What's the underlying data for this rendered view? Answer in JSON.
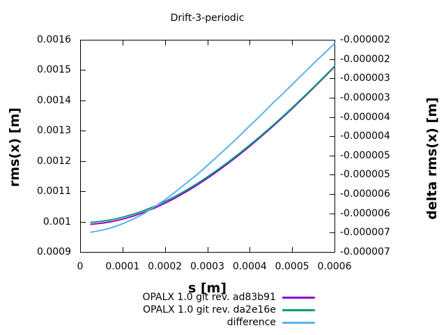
{
  "title": "Drift-3-periodic",
  "axes": {
    "x": {
      "label": "s [m]",
      "tick_labels": [
        "0",
        "0.0001",
        "0.0002",
        "0.0003",
        "0.0004",
        "0.0005",
        "0.0006"
      ]
    },
    "y_left": {
      "label": "rms(x) [m]",
      "tick_labels": [
        "0.0016",
        "0.0015",
        "0.0014",
        "0.0013",
        "0.0012",
        "0.0011",
        "0.001",
        "0.0009"
      ]
    },
    "y_right": {
      "label": "delta rms(x) [m]",
      "tick_labels": [
        "-0.000002",
        "-0.000002",
        "-0.000003",
        "-0.000003",
        "-0.000004",
        "-0.000004",
        "-0.000005",
        "-0.000005",
        "-0.000006",
        "-0.000006",
        "-0.000007",
        "-0.000007"
      ]
    }
  },
  "legend": {
    "items": [
      {
        "label": "OPALX 1.0 git rev. ad83b91",
        "color": "#9400d3"
      },
      {
        "label": "OPALX 1.0 git rev. da2e16e",
        "color": "#009e73"
      },
      {
        "label": "difference",
        "color": "#56b4e9"
      }
    ]
  },
  "colors": {
    "series1_purple": "#9400d3",
    "series2_green": "#009e73",
    "series3_blue": "#56b4e9",
    "axis": "#000000",
    "background": "#ffffff"
  },
  "chart_data": {
    "type": "line",
    "title": "Drift-3-periodic",
    "xlabel": "s [m]",
    "ylabel_left": "rms(x) [m]",
    "ylabel_right": "delta rms(x) [m]",
    "xlim": [
      0,
      0.0006
    ],
    "ylim_left": [
      0.0009,
      0.0016
    ],
    "ylim_right": [
      -7e-06,
      -1.5e-06
    ],
    "grid": false,
    "legend_position": "below-right",
    "x": [
      2.5e-05,
      5e-05,
      7.5e-05,
      0.0001,
      0.000125,
      0.00015,
      0.000175,
      0.0002,
      0.000225,
      0.00025,
      0.000275,
      0.0003,
      0.000325,
      0.00035,
      0.000375,
      0.0004,
      0.000425,
      0.00045,
      0.000475,
      0.0005,
      0.000525,
      0.00055,
      0.000575,
      0.0006
    ],
    "series": [
      {
        "name": "OPALX 1.0 git rev. ad83b91",
        "id": "opalx-ad83b91",
        "axis": "left",
        "color": "#9400d3",
        "values": [
          0.0009911,
          0.0009946,
          0.0010002,
          0.0010081,
          0.0010182,
          0.0010303,
          0.0010445,
          0.0010606,
          0.0010786,
          0.0010983,
          0.0011197,
          0.0011427,
          0.0011672,
          0.0011931,
          0.0012203,
          0.0012487,
          0.0012782,
          0.0013088,
          0.0013404,
          0.0013729,
          0.0014063,
          0.0014405,
          0.0014754,
          0.001511
        ]
      },
      {
        "name": "OPALX 1.0 git rev. da2e16e",
        "id": "opalx-da2e16e",
        "axis": "left",
        "color": "#009e73",
        "values": [
          0.0009976,
          0.001001,
          0.0010066,
          0.0010144,
          0.0010243,
          0.0010363,
          0.0010503,
          0.0010663,
          0.001084,
          0.0011035,
          0.0011247,
          0.0011475,
          0.0011717,
          0.0011974,
          0.0012243,
          0.0012524,
          0.0012817,
          0.001312,
          0.0013434,
          0.0013756,
          0.0014087,
          0.0014426,
          0.0014773,
          0.0015126
        ]
      },
      {
        "name": "difference",
        "id": "difference",
        "axis": "right",
        "color": "#56b4e9",
        "values": [
          -6.49e-06,
          -6.44e-06,
          -6.37e-06,
          -6.27e-06,
          -6.15e-06,
          -6.01e-06,
          -5.83e-06,
          -5.65e-06,
          -5.44e-06,
          -5.22e-06,
          -5e-06,
          -4.76e-06,
          -4.51e-06,
          -4.26e-06,
          -4e-06,
          -3.73e-06,
          -3.47e-06,
          -3.19e-06,
          -2.93e-06,
          -2.66e-06,
          -2.39e-06,
          -2.12e-06,
          -1.86e-06,
          -1.6e-06
        ]
      }
    ]
  }
}
